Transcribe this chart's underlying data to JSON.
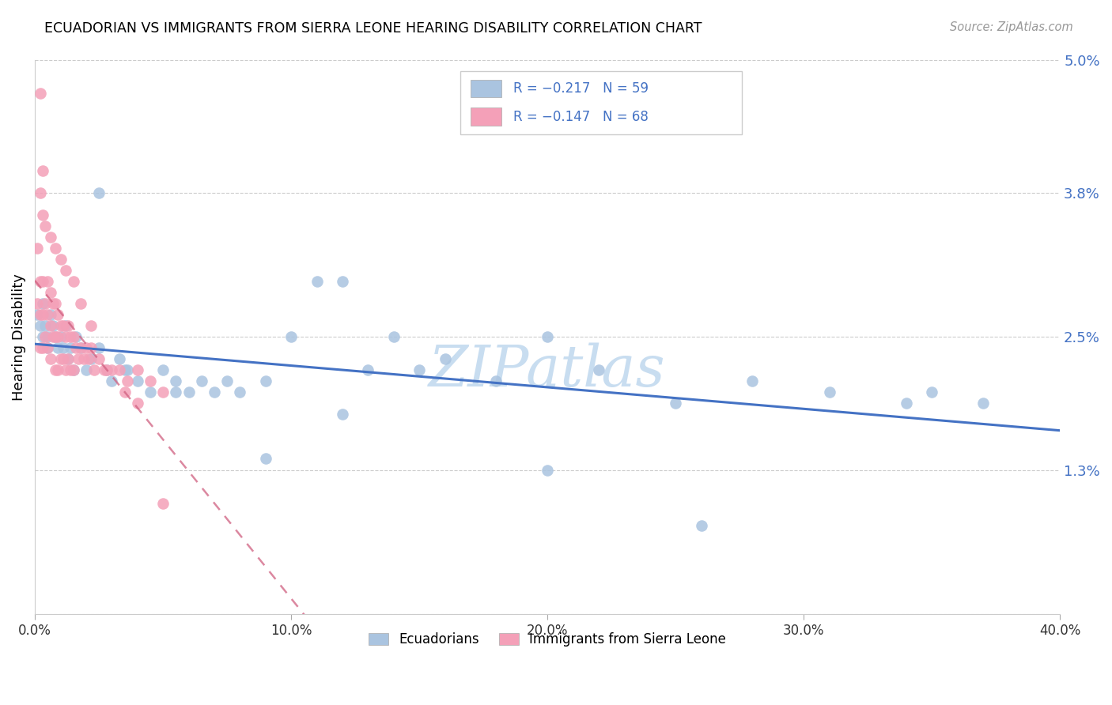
{
  "title": "ECUADORIAN VS IMMIGRANTS FROM SIERRA LEONE HEARING DISABILITY CORRELATION CHART",
  "source": "Source: ZipAtlas.com",
  "ylabel": "Hearing Disability",
  "xlim": [
    0.0,
    0.4
  ],
  "ylim": [
    0.0,
    0.05
  ],
  "ytick_positions": [
    0.0,
    0.013,
    0.025,
    0.038,
    0.05
  ],
  "ytick_labels": [
    "",
    "1.3%",
    "2.5%",
    "3.8%",
    "5.0%"
  ],
  "xtick_positions": [
    0.0,
    0.1,
    0.2,
    0.3,
    0.4
  ],
  "xtick_labels": [
    "0.0%",
    "10.0%",
    "20.0%",
    "30.0%",
    "40.0%"
  ],
  "blue_color": "#aac4e0",
  "blue_line_color": "#4472c4",
  "pink_color": "#f4a0b8",
  "pink_line_color": "#d06080",
  "axis_label_color": "#4472c4",
  "watermark_text": "ZIPatlas",
  "watermark_color": "#c8ddf0",
  "legend_blue_label": "R = −0.217   N = 59",
  "legend_pink_label": "R = −0.147   N = 68",
  "bottom_legend_blue": "Ecuadorians",
  "bottom_legend_pink": "Immigrants from Sierra Leone",
  "blue_x": [
    0.001,
    0.002,
    0.003,
    0.003,
    0.004,
    0.005,
    0.005,
    0.006,
    0.007,
    0.008,
    0.009,
    0.01,
    0.011,
    0.012,
    0.013,
    0.014,
    0.015,
    0.016,
    0.018,
    0.02,
    0.022,
    0.025,
    0.028,
    0.03,
    0.033,
    0.036,
    0.04,
    0.045,
    0.05,
    0.055,
    0.06,
    0.065,
    0.07,
    0.08,
    0.09,
    0.1,
    0.11,
    0.12,
    0.13,
    0.14,
    0.15,
    0.16,
    0.18,
    0.2,
    0.22,
    0.25,
    0.28,
    0.31,
    0.35,
    0.37,
    0.025,
    0.035,
    0.055,
    0.075,
    0.2,
    0.26,
    0.34,
    0.12,
    0.09
  ],
  "blue_y": [
    0.027,
    0.026,
    0.028,
    0.025,
    0.026,
    0.025,
    0.024,
    0.027,
    0.026,
    0.025,
    0.024,
    0.025,
    0.024,
    0.026,
    0.023,
    0.024,
    0.022,
    0.025,
    0.024,
    0.022,
    0.023,
    0.024,
    0.022,
    0.021,
    0.023,
    0.022,
    0.021,
    0.02,
    0.022,
    0.021,
    0.02,
    0.021,
    0.02,
    0.02,
    0.021,
    0.025,
    0.03,
    0.03,
    0.022,
    0.025,
    0.022,
    0.023,
    0.021,
    0.025,
    0.022,
    0.019,
    0.021,
    0.02,
    0.02,
    0.019,
    0.038,
    0.022,
    0.02,
    0.021,
    0.013,
    0.008,
    0.019,
    0.018,
    0.014
  ],
  "pink_x": [
    0.001,
    0.001,
    0.002,
    0.002,
    0.002,
    0.003,
    0.003,
    0.003,
    0.004,
    0.004,
    0.005,
    0.005,
    0.005,
    0.006,
    0.006,
    0.006,
    0.007,
    0.007,
    0.008,
    0.008,
    0.008,
    0.009,
    0.009,
    0.009,
    0.01,
    0.01,
    0.011,
    0.011,
    0.012,
    0.012,
    0.013,
    0.013,
    0.014,
    0.014,
    0.015,
    0.015,
    0.016,
    0.017,
    0.018,
    0.019,
    0.02,
    0.021,
    0.022,
    0.023,
    0.025,
    0.027,
    0.03,
    0.033,
    0.036,
    0.04,
    0.045,
    0.05,
    0.002,
    0.003,
    0.004,
    0.006,
    0.008,
    0.01,
    0.012,
    0.015,
    0.018,
    0.022,
    0.028,
    0.035,
    0.04,
    0.05,
    0.002,
    0.003
  ],
  "pink_y": [
    0.028,
    0.033,
    0.03,
    0.027,
    0.024,
    0.03,
    0.027,
    0.024,
    0.028,
    0.025,
    0.03,
    0.027,
    0.024,
    0.029,
    0.026,
    0.023,
    0.028,
    0.025,
    0.028,
    0.025,
    0.022,
    0.027,
    0.025,
    0.022,
    0.026,
    0.023,
    0.026,
    0.023,
    0.025,
    0.022,
    0.026,
    0.023,
    0.025,
    0.022,
    0.025,
    0.022,
    0.024,
    0.023,
    0.024,
    0.023,
    0.024,
    0.023,
    0.024,
    0.022,
    0.023,
    0.022,
    0.022,
    0.022,
    0.021,
    0.022,
    0.021,
    0.02,
    0.038,
    0.036,
    0.035,
    0.034,
    0.033,
    0.032,
    0.031,
    0.03,
    0.028,
    0.026,
    0.022,
    0.02,
    0.019,
    0.01,
    0.047,
    0.04
  ]
}
